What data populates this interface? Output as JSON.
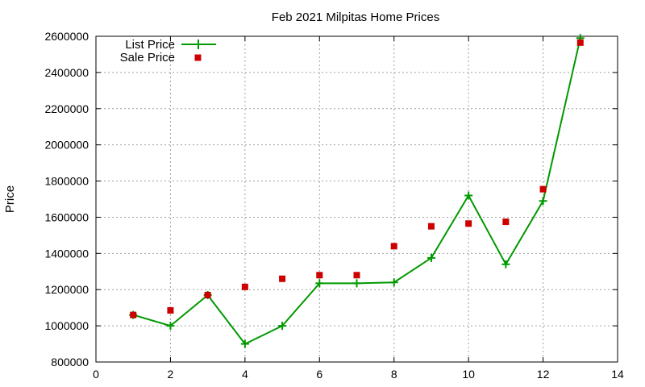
{
  "chart_data": {
    "type": "line",
    "title": "Feb 2021 Milpitas Home Prices",
    "xlabel": "",
    "ylabel": "Price",
    "xlim": [
      0,
      14
    ],
    "ylim": [
      800000,
      2600000
    ],
    "xticks": [
      0,
      2,
      4,
      6,
      8,
      10,
      12,
      14
    ],
    "yticks": [
      800000,
      1000000,
      1200000,
      1400000,
      1600000,
      1800000,
      2000000,
      2200000,
      2400000,
      2600000
    ],
    "grid": true,
    "legend_position": "top-left",
    "series": [
      {
        "name": "List Price",
        "style": "line-with-plus-markers",
        "color": "#009900",
        "x": [
          1,
          2,
          3,
          4,
          5,
          6,
          7,
          8,
          9,
          10,
          11,
          12,
          13
        ],
        "y": [
          1060000,
          1000000,
          1170000,
          900000,
          1000000,
          1235000,
          1235000,
          1240000,
          1375000,
          1720000,
          1340000,
          1690000,
          2590000
        ]
      },
      {
        "name": "Sale Price",
        "style": "square-markers",
        "color": "#cc0000",
        "x": [
          1,
          2,
          3,
          4,
          5,
          6,
          7,
          8,
          9,
          10,
          11,
          12,
          13
        ],
        "y": [
          1060000,
          1085000,
          1170000,
          1215000,
          1260000,
          1280000,
          1280000,
          1440000,
          1550000,
          1565000,
          1575000,
          1755000,
          2565000
        ]
      }
    ]
  }
}
